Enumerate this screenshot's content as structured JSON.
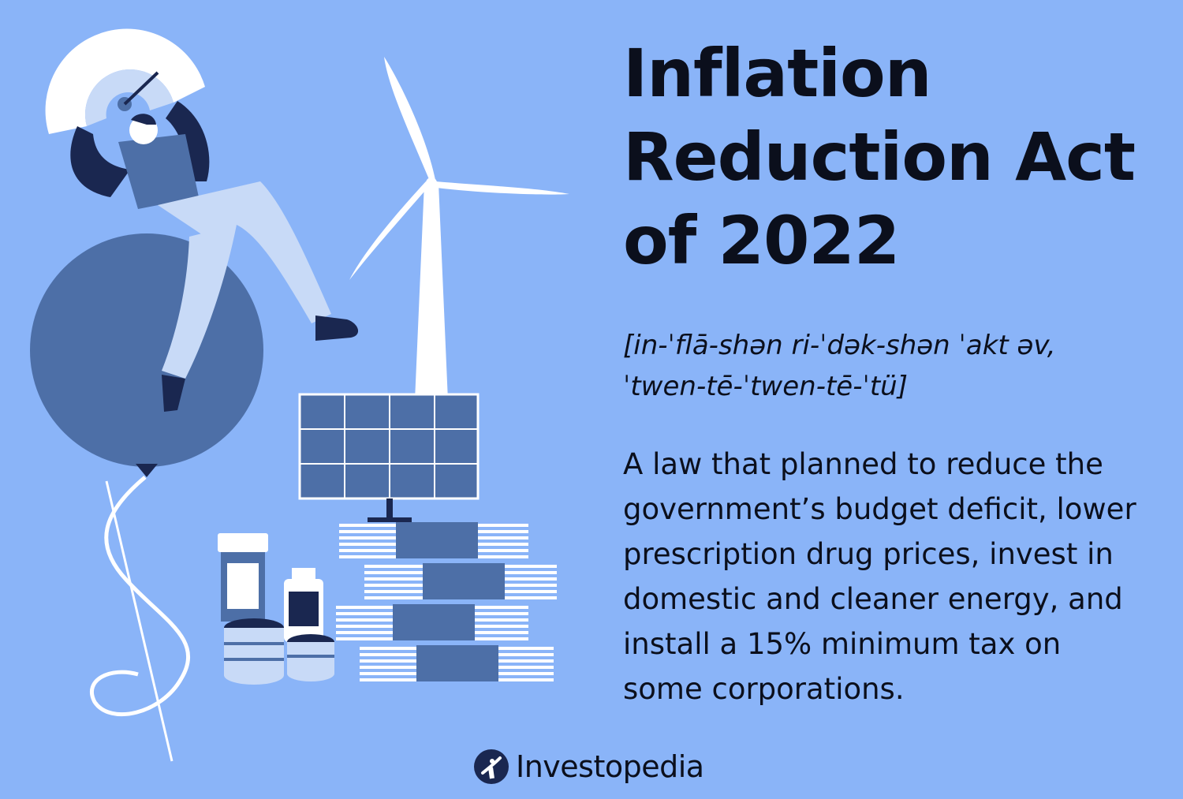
{
  "title": {
    "lines": [
      "Inflation",
      "Reduction Act",
      "of 2022"
    ]
  },
  "pronunciation": {
    "lines": [
      "[in-ˈflā-shən ri-ˈdək-shən ˈakt əv,",
      "ˈtwen-tē-ˈtwen-tē-ˈtü]"
    ]
  },
  "definition": {
    "lines": [
      "A law that planned to reduce the",
      "government’s budget deficit, lower",
      "prescription drug prices, invest in",
      "domestic and cleaner energy, and",
      "install a 15% minimum tax on",
      "some corporations."
    ]
  },
  "brand": {
    "name": "Investopedia",
    "icon": "investopedia-logo-icon"
  },
  "colors": {
    "background": "#8ab4f8",
    "dark_blue": "#4d6fa7",
    "navy": "#1a2750",
    "white": "#ffffff",
    "text": "#0b0f1c"
  }
}
